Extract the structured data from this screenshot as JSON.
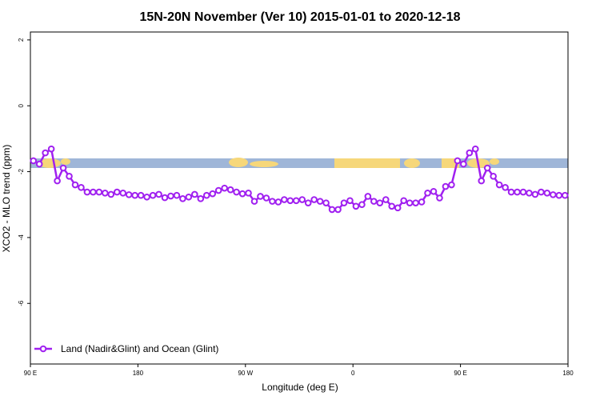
{
  "chart_data": {
    "type": "line",
    "title": "15N-20N November (Ver 10)   2015-01-01 to 2020-12-18",
    "x_label": "Longitude (deg E)",
    "y_label": "XCO2 - MLO trend (ppm)",
    "xlim": [
      90,
      540
    ],
    "ylim": [
      -7.84,
      2.24
    ],
    "xticks": [
      {
        "value": 90,
        "label": "90 E"
      },
      180,
      {
        "value": 270,
        "label": "90 W"
      },
      {
        "value": 360,
        "label": "0"
      },
      {
        "value": 450,
        "label": "90 E"
      },
      {
        "value": 540,
        "label": "180"
      }
    ],
    "yticks": [
      2,
      0,
      -2,
      -4,
      -6
    ],
    "legend": "bottom-left",
    "x": [
      92.5,
      97.5,
      102.5,
      107.5,
      112.5,
      117.5,
      122.5,
      127.5,
      132.5,
      137.5,
      142.5,
      147.5,
      152.5,
      157.5,
      162.5,
      167.5,
      172.5,
      177.5,
      182.5,
      187.5,
      192.5,
      197.5,
      202.5,
      207.5,
      212.5,
      217.5,
      222.5,
      227.5,
      232.5,
      237.5,
      242.5,
      247.5,
      252.5,
      257.5,
      262.5,
      267.5,
      272.5,
      277.5,
      282.5,
      287.5,
      292.5,
      297.5,
      302.5,
      307.5,
      312.5,
      317.5,
      322.5,
      327.5,
      332.5,
      337.5,
      342.5,
      347.5,
      352.5,
      357.5,
      362.5,
      367.5,
      372.5,
      377.5,
      382.5,
      387.5,
      392.5,
      397.5,
      402.5,
      407.5,
      412.5,
      417.5,
      422.5,
      427.5,
      432.5,
      437.5,
      442.5,
      447.5,
      452.5,
      457.5,
      462.5,
      467.5,
      472.5,
      477.5,
      482.5,
      487.5,
      492.5,
      497.5,
      502.5,
      507.5,
      512.5,
      517.5,
      522.5,
      527.5,
      532.5,
      537.5
    ],
    "series": [
      {
        "name": "Land (Nadir&Glint) and Ocean (Glint)",
        "color": "#a020f0",
        "values": [
          -1.67,
          -1.77,
          -1.43,
          -1.31,
          -2.28,
          -1.89,
          -2.14,
          -2.4,
          -2.48,
          -2.62,
          -2.62,
          -2.62,
          -2.65,
          -2.69,
          -2.62,
          -2.65,
          -2.7,
          -2.72,
          -2.72,
          -2.77,
          -2.72,
          -2.69,
          -2.79,
          -2.74,
          -2.72,
          -2.82,
          -2.77,
          -2.69,
          -2.82,
          -2.72,
          -2.67,
          -2.57,
          -2.5,
          -2.55,
          -2.62,
          -2.67,
          -2.65,
          -2.9,
          -2.75,
          -2.8,
          -2.9,
          -2.92,
          -2.85,
          -2.88,
          -2.88,
          -2.85,
          -2.95,
          -2.85,
          -2.9,
          -2.95,
          -3.15,
          -3.15,
          -2.95,
          -2.88,
          -3.05,
          -3.0,
          -2.75,
          -2.9,
          -2.95,
          -2.85,
          -3.05,
          -3.1,
          -2.88,
          -2.95,
          -2.95,
          -2.92,
          -2.65,
          -2.6,
          -2.8,
          -2.45,
          -2.4,
          -1.67,
          -1.77,
          -1.43,
          -1.31,
          -2.28,
          -1.89,
          -2.14,
          -2.4,
          -2.48,
          -2.62,
          -2.62,
          -2.62,
          -2.65,
          -2.69,
          -2.62,
          -2.65,
          -2.7,
          -2.72,
          -2.72
        ]
      }
    ]
  }
}
